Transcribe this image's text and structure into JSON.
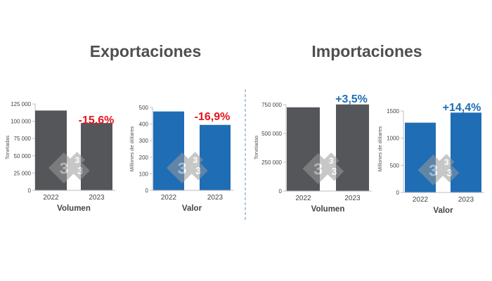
{
  "colors": {
    "grey_bar": "#54565a",
    "blue_bar": "#1f6db5",
    "negative": "#e8141c",
    "positive": "#1f6db5",
    "divider": "#7aa3cc"
  },
  "titles": {
    "exports": "Exportaciones",
    "imports": "Importaciones"
  },
  "chart_data": [
    {
      "group": "Exportaciones",
      "type": "bar",
      "categories": [
        "2022",
        "2023"
      ],
      "values": [
        115500,
        97500
      ],
      "ylabel": "Toneladas",
      "xlabel": "Volumen",
      "ylim": [
        0,
        125000
      ],
      "yticks": [
        0,
        25000,
        50000,
        75000,
        100000,
        125000
      ],
      "ytick_labels": [
        "0",
        "25 000",
        "50 000",
        "75 000",
        "100 000",
        "125 000"
      ],
      "change_label": "-15,6%",
      "color": "grey",
      "change_color": "negative"
    },
    {
      "group": "Exportaciones",
      "type": "bar",
      "categories": [
        "2022",
        "2023"
      ],
      "values": [
        476,
        395
      ],
      "ylabel": "Millones de dólares",
      "xlabel": "Valor",
      "ylim": [
        0,
        500
      ],
      "yticks": [
        0,
        100,
        200,
        300,
        400,
        500
      ],
      "ytick_labels": [
        "0",
        "100",
        "200",
        "300",
        "400",
        "500"
      ],
      "change_label": "-16,9%",
      "color": "blue",
      "change_color": "negative"
    },
    {
      "group": "Importaciones",
      "type": "bar",
      "categories": [
        "2022",
        "2023"
      ],
      "values": [
        727000,
        752000
      ],
      "ylabel": "Toneladas",
      "xlabel": "Volumen",
      "ylim": [
        0,
        750000
      ],
      "yticks": [
        0,
        250000,
        500000,
        750000
      ],
      "ytick_labels": [
        "0",
        "250 000",
        "500 000",
        "750 000"
      ],
      "change_label": "+3,5%",
      "color": "grey",
      "change_color": "positive"
    },
    {
      "group": "Importaciones",
      "type": "bar",
      "categories": [
        "2022",
        "2023"
      ],
      "values": [
        1285,
        1470
      ],
      "ylabel": "Millones de dólares",
      "xlabel": "Valor",
      "ylim": [
        0,
        1500
      ],
      "yticks": [
        0,
        500,
        1000,
        1500
      ],
      "ytick_labels": [
        "0",
        "500",
        "1000",
        "1500"
      ],
      "change_label": "+14,4%",
      "color": "blue",
      "change_color": "positive"
    }
  ]
}
